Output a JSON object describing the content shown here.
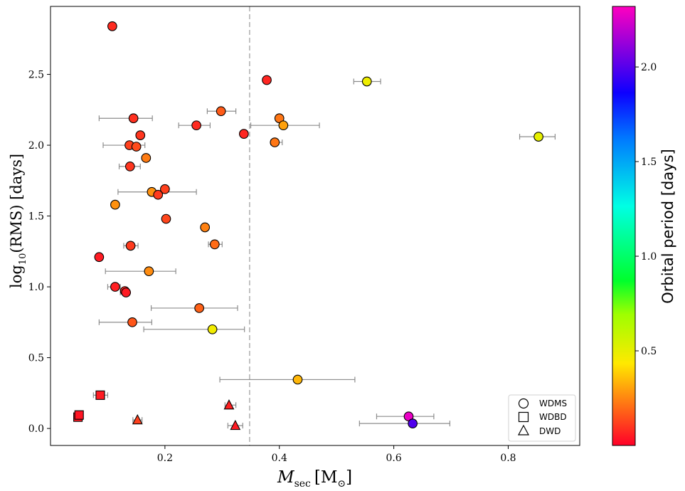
{
  "chart_data": {
    "type": "scatter",
    "xlabel": "M_sec [M_⊙]",
    "xlabel_main": "M",
    "xlabel_sub": "sec",
    "xlabel_unit_open": "[M",
    "xlabel_unit_sub": "⊙",
    "xlabel_unit_close": "]",
    "ylabel": "log10(RMS) [days]",
    "ylabel_main": "log",
    "ylabel_sub": "10",
    "ylabel_rest": "(RMS) [days]",
    "xlim": [
      0.0,
      0.925
    ],
    "ylim": [
      -0.12,
      2.98
    ],
    "xticks": [
      0.2,
      0.4,
      0.6,
      0.8
    ],
    "xtick_labels": [
      "0.2",
      "0.4",
      "0.6",
      "0.8"
    ],
    "yticks": [
      0.0,
      0.5,
      1.0,
      1.5,
      2.0,
      2.5
    ],
    "ytick_labels": [
      "0.0",
      "0.5",
      "1.0",
      "1.5",
      "2.0",
      "2.5"
    ],
    "reference_line_x": 0.348,
    "colorbar": {
      "label": "Orbital period [days]",
      "range": [
        0.0,
        2.32
      ],
      "ticks": [
        0.5,
        1.0,
        1.5,
        2.0
      ],
      "tick_labels": [
        "0.5",
        "1.0",
        "1.5",
        "2.0"
      ],
      "colormap": "gist_rainbow_r"
    },
    "legend": {
      "position": "lower-right",
      "entries": [
        {
          "marker": "circle",
          "label": "WDMS"
        },
        {
          "marker": "square",
          "label": "WDBD"
        },
        {
          "marker": "triangle",
          "label": "DWD"
        }
      ]
    },
    "points": [
      {
        "x": 0.108,
        "y": 2.84,
        "period": 0.08,
        "marker": "circle",
        "xerr": null
      },
      {
        "x": 0.378,
        "y": 2.46,
        "period": 0.07,
        "marker": "circle",
        "xerr": null
      },
      {
        "x": 0.553,
        "y": 2.45,
        "period": 0.48,
        "marker": "circle",
        "xerr": [
          0.53,
          0.577
        ]
      },
      {
        "x": 0.145,
        "y": 2.19,
        "period": 0.09,
        "marker": "circle",
        "xerr": [
          0.085,
          0.178
        ]
      },
      {
        "x": 0.298,
        "y": 2.24,
        "period": 0.17,
        "marker": "circle",
        "xerr": [
          0.274,
          0.324
        ]
      },
      {
        "x": 0.4,
        "y": 2.19,
        "period": 0.22,
        "marker": "circle",
        "xerr": null
      },
      {
        "x": 0.255,
        "y": 2.14,
        "period": 0.08,
        "marker": "circle",
        "xerr": [
          0.224,
          0.279
        ]
      },
      {
        "x": 0.407,
        "y": 2.14,
        "period": 0.3,
        "marker": "circle",
        "xerr": [
          0.35,
          0.47
        ]
      },
      {
        "x": 0.338,
        "y": 2.08,
        "period": 0.07,
        "marker": "circle",
        "xerr": null
      },
      {
        "x": 0.157,
        "y": 2.07,
        "period": 0.1,
        "marker": "circle",
        "xerr": null
      },
      {
        "x": 0.853,
        "y": 2.06,
        "period": 0.5,
        "marker": "circle",
        "xerr": [
          0.82,
          0.882
        ]
      },
      {
        "x": 0.392,
        "y": 2.02,
        "period": 0.22,
        "marker": "circle",
        "xerr": [
          0.385,
          0.405
        ]
      },
      {
        "x": 0.138,
        "y": 2.0,
        "period": 0.12,
        "marker": "circle",
        "xerr": [
          0.092,
          0.165
        ]
      },
      {
        "x": 0.15,
        "y": 1.99,
        "period": 0.14,
        "marker": "circle",
        "xerr": null
      },
      {
        "x": 0.167,
        "y": 1.91,
        "period": 0.23,
        "marker": "circle",
        "xerr": null
      },
      {
        "x": 0.139,
        "y": 1.85,
        "period": 0.1,
        "marker": "circle",
        "xerr": [
          0.12,
          0.157
        ]
      },
      {
        "x": 0.177,
        "y": 1.67,
        "period": 0.27,
        "marker": "circle",
        "xerr": [
          0.118,
          0.255
        ]
      },
      {
        "x": 0.2,
        "y": 1.69,
        "period": 0.12,
        "marker": "circle",
        "xerr": null
      },
      {
        "x": 0.188,
        "y": 1.65,
        "period": 0.11,
        "marker": "circle",
        "xerr": null
      },
      {
        "x": 0.113,
        "y": 1.58,
        "period": 0.27,
        "marker": "circle",
        "xerr": null
      },
      {
        "x": 0.202,
        "y": 1.48,
        "period": 0.13,
        "marker": "circle",
        "xerr": null
      },
      {
        "x": 0.27,
        "y": 1.42,
        "period": 0.24,
        "marker": "circle",
        "xerr": null
      },
      {
        "x": 0.14,
        "y": 1.29,
        "period": 0.11,
        "marker": "circle",
        "xerr": [
          0.128,
          0.153
        ]
      },
      {
        "x": 0.287,
        "y": 1.3,
        "period": 0.2,
        "marker": "circle",
        "xerr": [
          0.276,
          0.3
        ]
      },
      {
        "x": 0.085,
        "y": 1.21,
        "period": 0.05,
        "marker": "circle",
        "xerr": null
      },
      {
        "x": 0.172,
        "y": 1.11,
        "period": 0.26,
        "marker": "circle",
        "xerr": [
          0.096,
          0.219
        ]
      },
      {
        "x": 0.113,
        "y": 1.0,
        "period": 0.06,
        "marker": "circle",
        "xerr": [
          0.1,
          0.122
        ]
      },
      {
        "x": 0.13,
        "y": 0.97,
        "period": 0.08,
        "marker": "circle",
        "xerr": null
      },
      {
        "x": 0.132,
        "y": 0.96,
        "period": 0.05,
        "marker": "circle",
        "xerr": [
          0.122,
          0.138
        ]
      },
      {
        "x": 0.26,
        "y": 0.85,
        "period": 0.18,
        "marker": "circle",
        "xerr": [
          0.176,
          0.327
        ]
      },
      {
        "x": 0.143,
        "y": 0.75,
        "period": 0.16,
        "marker": "circle",
        "xerr": [
          0.085,
          0.177
        ]
      },
      {
        "x": 0.283,
        "y": 0.7,
        "period": 0.47,
        "marker": "circle",
        "xerr": [
          0.163,
          0.339
        ]
      },
      {
        "x": 0.432,
        "y": 0.345,
        "period": 0.34,
        "marker": "circle",
        "xerr": [
          0.296,
          0.532
        ]
      },
      {
        "x": 0.626,
        "y": 0.085,
        "period": 2.28,
        "marker": "circle",
        "xerr": [
          0.57,
          0.67
        ]
      },
      {
        "x": 0.633,
        "y": 0.035,
        "period": 1.99,
        "marker": "circle",
        "xerr": [
          0.54,
          0.698
        ]
      },
      {
        "x": 0.087,
        "y": 0.235,
        "period": 0.05,
        "marker": "square",
        "xerr": [
          0.075,
          0.1
        ]
      },
      {
        "x": 0.048,
        "y": 0.08,
        "period": 0.05,
        "marker": "square",
        "xerr": null
      },
      {
        "x": 0.05,
        "y": 0.095,
        "period": 0.04,
        "marker": "square",
        "xerr": null
      },
      {
        "x": 0.312,
        "y": 0.165,
        "period": 0.06,
        "marker": "triangle",
        "xerr": [
          0.305,
          0.324
        ]
      },
      {
        "x": 0.152,
        "y": 0.06,
        "period": 0.12,
        "marker": "triangle",
        "xerr": [
          0.144,
          0.16
        ]
      },
      {
        "x": 0.323,
        "y": 0.02,
        "period": 0.05,
        "marker": "triangle",
        "xerr": [
          0.31,
          0.336
        ]
      }
    ]
  }
}
